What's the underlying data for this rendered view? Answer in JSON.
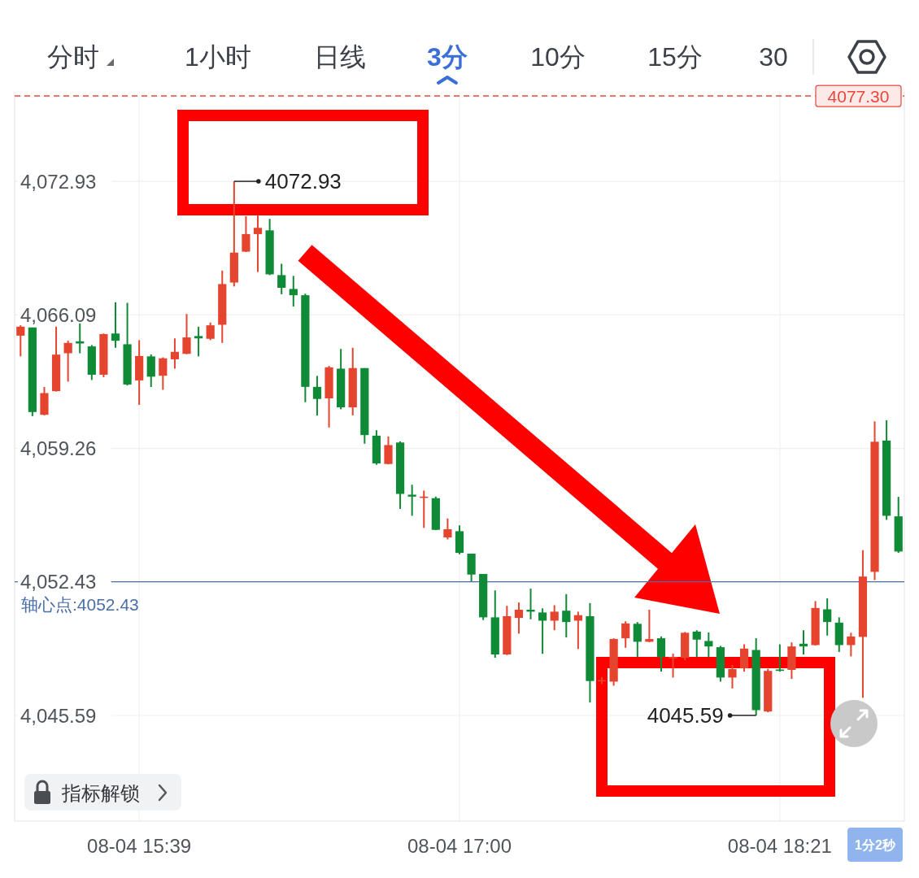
{
  "chart_data": {
    "type": "candlestick",
    "categories": [
      null,
      null,
      null,
      null,
      null,
      null,
      null,
      null,
      null,
      null,
      "08-04 15:39",
      null,
      null,
      null,
      null,
      null,
      null,
      null,
      null,
      null,
      null,
      null,
      null,
      null,
      null,
      null,
      null,
      null,
      null,
      null,
      null,
      null,
      null,
      null,
      null,
      null,
      null,
      "08-04 17:00",
      null,
      null,
      null,
      null,
      null,
      null,
      null,
      null,
      null,
      null,
      null,
      null,
      null,
      null,
      null,
      null,
      null,
      null,
      null,
      null,
      null,
      null,
      null,
      null,
      null,
      null,
      "08-04 18:21",
      null,
      null,
      null,
      null,
      null,
      null,
      null,
      null,
      null,
      null
    ],
    "ohlc": [
      [
        4065.03,
        4065.56,
        4063.97,
        4065.49
      ],
      [
        4065.45,
        4065.45,
        4060.91,
        4061.12
      ],
      [
        4060.98,
        4062.4,
        4060.95,
        4062.09
      ],
      [
        4062.19,
        4065.49,
        4062.17,
        4064.06
      ],
      [
        4064.13,
        4064.77,
        4062.68,
        4064.66
      ],
      [
        4064.74,
        4065.66,
        4064.13,
        4064.63
      ],
      [
        4064.48,
        4064.55,
        4062.76,
        4063.03
      ],
      [
        4063.03,
        4065.14,
        4062.9,
        4065.11
      ],
      [
        4065.14,
        4066.74,
        4064.41,
        4064.77
      ],
      [
        4064.59,
        4066.71,
        4062.48,
        4062.53
      ],
      [
        4062.74,
        4064.8,
        4061.49,
        4063.99
      ],
      [
        4063.97,
        4064.07,
        4062.4,
        4062.93
      ],
      [
        4062.98,
        4063.92,
        4062.26,
        4063.87
      ],
      [
        4063.82,
        4064.89,
        4063.34,
        4064.2
      ],
      [
        4064.1,
        4066.14,
        4064.08,
        4064.94
      ],
      [
        4065.01,
        4065.49,
        4063.97,
        4064.89
      ],
      [
        4064.87,
        4065.7,
        4064.8,
        4065.56
      ],
      [
        4065.59,
        4068.36,
        4064.66,
        4067.67
      ],
      [
        4067.75,
        4072.93,
        4067.55,
        4069.28
      ],
      [
        4069.33,
        4071.14,
        4069.31,
        4070.23
      ],
      [
        4070.23,
        4071.18,
        4068.29,
        4070.55
      ],
      [
        4070.42,
        4071.01,
        4068.13,
        4068.17
      ],
      [
        4068.13,
        4068.71,
        4067.15,
        4067.48
      ],
      [
        4067.42,
        4068.09,
        4066.52,
        4067.1
      ],
      [
        4067.1,
        4067.18,
        4061.62,
        4062.41
      ],
      [
        4062.41,
        4062.97,
        4060.94,
        4061.79
      ],
      [
        4061.82,
        4063.48,
        4060.33,
        4063.41
      ],
      [
        4063.34,
        4064.35,
        4061.26,
        4061.36
      ],
      [
        4061.36,
        4064.41,
        4060.95,
        4063.37
      ],
      [
        4063.37,
        4063.37,
        4059.5,
        4059.94
      ],
      [
        4059.91,
        4060.19,
        4058.42,
        4058.49
      ],
      [
        4058.46,
        4059.87,
        4058.44,
        4059.43
      ],
      [
        4059.56,
        4059.62,
        4056.16,
        4056.93
      ],
      [
        4056.89,
        4057.4,
        4055.81,
        4056.79
      ],
      [
        4056.75,
        4057.1,
        4055.19,
        4056.79
      ],
      [
        4056.71,
        4056.79,
        4055.07,
        4055.09
      ],
      [
        4054.7,
        4055.67,
        4054.6,
        4055.12
      ],
      [
        4055.02,
        4055.32,
        4053.84,
        4053.91
      ],
      [
        4053.87,
        4053.87,
        4052.45,
        4052.8
      ],
      [
        4052.83,
        4052.83,
        4050.47,
        4050.61
      ],
      [
        4050.61,
        4051.99,
        4048.54,
        4048.71
      ],
      [
        4048.71,
        4051.2,
        4048.68,
        4050.67
      ],
      [
        4050.58,
        4051.37,
        4049.78,
        4051.0
      ],
      [
        4051.0,
        4052.08,
        4050.51,
        4050.9
      ],
      [
        4050.86,
        4051.07,
        4048.74,
        4050.44
      ],
      [
        4050.44,
        4051.23,
        4049.95,
        4050.9
      ],
      [
        4050.95,
        4051.8,
        4049.58,
        4050.37
      ],
      [
        4050.44,
        4050.9,
        4048.99,
        4050.72
      ],
      [
        4050.67,
        4051.34,
        4046.25,
        4047.35
      ],
      [
        4047.33,
        4047.55,
        4047.2,
        4047.4
      ],
      [
        4047.32,
        4049.54,
        4047.11,
        4049.5
      ],
      [
        4049.54,
        4050.41,
        4049.05,
        4050.3
      ],
      [
        4050.28,
        4050.37,
        4048.57,
        4049.36
      ],
      [
        4049.36,
        4051.0,
        4049.34,
        4049.5
      ],
      [
        4049.54,
        4049.63,
        4047.83,
        4048.57
      ],
      [
        4048.54,
        4048.75,
        4047.53,
        4048.58
      ],
      [
        4048.54,
        4049.86,
        4048.41,
        4049.82
      ],
      [
        4049.88,
        4049.95,
        4048.57,
        4049.47
      ],
      [
        4049.4,
        4049.84,
        4048.57,
        4049.12
      ],
      [
        4049.08,
        4049.15,
        4047.32,
        4047.53
      ],
      [
        4047.53,
        4048.17,
        4046.97,
        4047.96
      ],
      [
        4048.0,
        4049.23,
        4047.83,
        4049.01
      ],
      [
        4048.94,
        4049.54,
        4045.59,
        4045.86
      ],
      [
        4045.79,
        4047.97,
        4045.75,
        4047.87
      ],
      [
        4047.94,
        4049.23,
        4047.83,
        4047.87
      ],
      [
        4047.92,
        4049.33,
        4047.46,
        4049.12
      ],
      [
        4049.26,
        4049.95,
        4048.71,
        4049.12
      ],
      [
        4049.19,
        4051.44,
        4049.17,
        4051.09
      ],
      [
        4051.02,
        4051.58,
        4049.68,
        4050.37
      ],
      [
        4050.34,
        4050.61,
        4048.84,
        4049.19
      ],
      [
        4049.19,
        4049.82,
        4048.61,
        4049.63
      ],
      [
        4049.61,
        4054.05,
        4046.49,
        4052.7
      ],
      [
        4052.94,
        4060.64,
        4052.52,
        4059.6
      ],
      [
        4059.66,
        4060.7,
        4055.6,
        4055.81
      ],
      [
        4055.78,
        4056.78,
        4053.91,
        4053.98
      ]
    ],
    "colors": [
      "#e5452f",
      "#0f8a36",
      "#e5452f",
      "#e5452f",
      "#e5452f",
      "#0f8a36",
      "#0f8a36",
      "#e5452f",
      "#0f8a36",
      "#0f8a36",
      "#e5452f",
      "#0f8a36",
      "#e5452f",
      "#e5452f",
      "#e5452f",
      "#0f8a36",
      "#e5452f",
      "#e5452f",
      "#e5452f",
      "#e5452f",
      "#e5452f",
      "#0f8a36",
      "#0f8a36",
      "#0f8a36",
      "#0f8a36",
      "#0f8a36",
      "#e5452f",
      "#0f8a36",
      "#e5452f",
      "#0f8a36",
      "#0f8a36",
      "#e5452f",
      "#0f8a36",
      "#0f8a36",
      "#e5452f",
      "#0f8a36",
      "#e5452f",
      "#0f8a36",
      "#0f8a36",
      "#0f8a36",
      "#0f8a36",
      "#e5452f",
      "#e5452f",
      "#0f8a36",
      "#0f8a36",
      "#e5452f",
      "#0f8a36",
      "#e5452f",
      "#0f8a36",
      "#e5452f",
      "#e5452f",
      "#e5452f",
      "#0f8a36",
      "#e5452f",
      "#0f8a36",
      "#e5452f",
      "#e5452f",
      "#0f8a36",
      "#0f8a36",
      "#0f8a36",
      "#e5452f",
      "#e5452f",
      "#0f8a36",
      "#e5452f",
      "#0f8a36",
      "#e5452f",
      "#0f8a36",
      "#e5452f",
      "#0f8a36",
      "#0f8a36",
      "#e5452f",
      "#e5452f",
      "#e5452f",
      "#0f8a36",
      "#0f8a36"
    ],
    "ylim": [
      4040.18,
      4077.51
    ],
    "yticks": [
      {
        "value": 4045.59,
        "label": "4,045.59"
      },
      {
        "value": 4052.43,
        "label": "4,052.43"
      },
      {
        "value": 4059.26,
        "label": "4,059.26"
      },
      {
        "value": 4066.09,
        "label": "4,066.09"
      },
      {
        "value": 4072.93,
        "label": "4,072.93"
      }
    ],
    "grid": true,
    "ref_lines": [
      {
        "axis": "y",
        "value": 4077.3,
        "label": "4077.30",
        "color": "#e8483b",
        "line_style": "dashed"
      },
      {
        "axis": "y",
        "value": 4052.43,
        "label": "轴心点:4052.43",
        "color": "#4a6fa8",
        "line_style": "solid"
      }
    ],
    "annotations": [
      "分时",
      "1小时",
      "日线",
      "3分",
      "10分",
      "15分",
      "30",
      "4072.93",
      "4045.59",
      "指标解锁",
      "1分2秒"
    ]
  }
}
